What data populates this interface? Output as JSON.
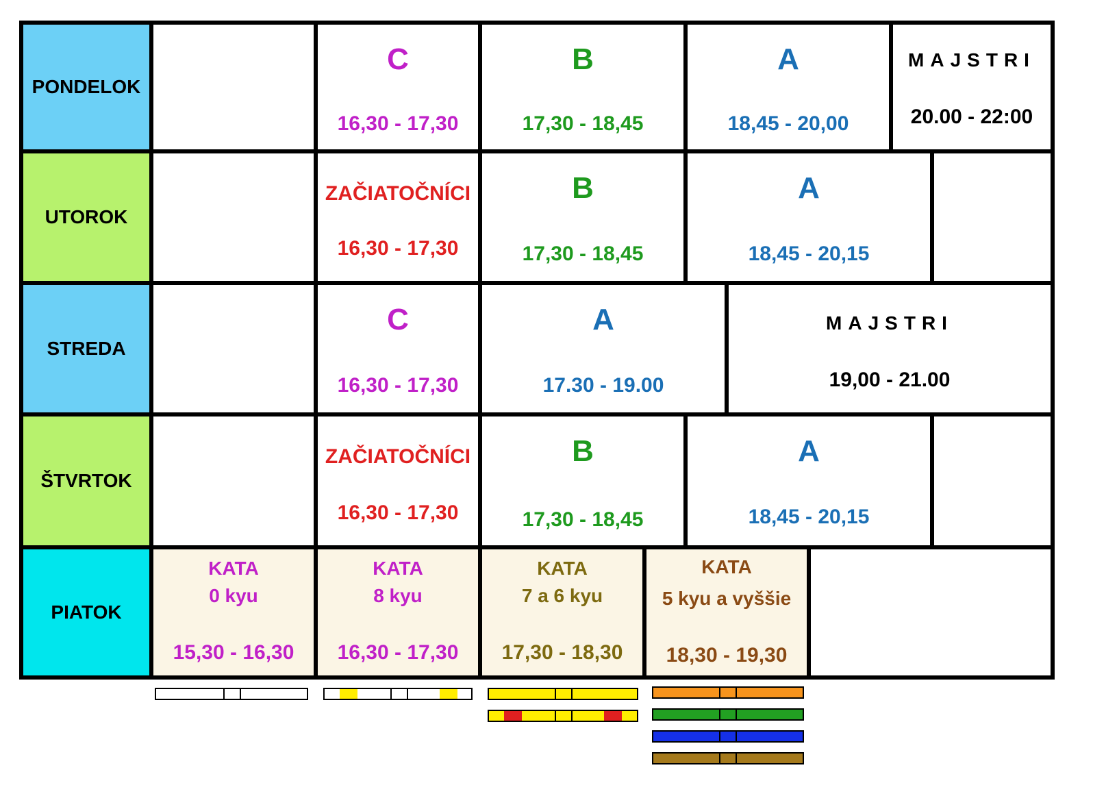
{
  "colors": {
    "purple": "#c020c8",
    "green": "#1e9a1e",
    "blue": "#1a6fb5",
    "red": "#e02020",
    "black": "#000000",
    "olive": "#7d6a10",
    "brown": "#8a4a14",
    "day_blue": "#6cd0f6",
    "day_green": "#b7f26d",
    "day_cyan": "#00e6ed",
    "kata_bg": "#fbf5e5"
  },
  "days": {
    "mon": "PONDELOK",
    "tue": "UTOROK",
    "wed": "STREDA",
    "thu": "ŠTVRTOK",
    "fri": "PIATOK"
  },
  "monday": [
    {
      "group": "C",
      "time": "16,30  - 17,30"
    },
    {
      "group": "B",
      "time": "17,30  - 18,45"
    },
    {
      "group": "A",
      "time": "18,45 - 20,00"
    },
    {
      "group": "MAJSTRI",
      "time": "20.00 - 22:00"
    }
  ],
  "tuesday": [
    {
      "group": "ZAČIATOČNÍCI",
      "time": "16,30 - 17,30"
    },
    {
      "group": "B",
      "time": "17,30  - 18,45"
    },
    {
      "group": "A",
      "time": "18,45 - 20,15"
    }
  ],
  "wednesday": [
    {
      "group": "C",
      "time": "16,30  - 17,30"
    },
    {
      "group": "A",
      "time": "17.30 - 19.00"
    },
    {
      "group": "MAJSTRI",
      "time": "19,00 - 21.00"
    }
  ],
  "thursday": [
    {
      "group": "ZAČIATOČNÍCI",
      "time": "16,30 - 17,30"
    },
    {
      "group": "B",
      "time": "17,30  - 18,45"
    },
    {
      "group": "A",
      "time": "18,45 - 20,15"
    }
  ],
  "friday": [
    {
      "title": "KATA",
      "level": "0 kyu",
      "time": "15,30 - 16,30"
    },
    {
      "title": "KATA",
      "level": "8 kyu",
      "time": "16,30 - 17,30"
    },
    {
      "title": "KATA",
      "level": "7 a 6 kyu",
      "time": "17,30 - 18,30"
    },
    {
      "title": "KATA",
      "level": "5 kyu a vyššie",
      "time": "18,30 - 19,30"
    }
  ],
  "belts": [
    {
      "name": "white-belt",
      "color": "#ffffff",
      "stripe": null
    },
    {
      "name": "white-belt-yellow-stripes",
      "color": "#ffffff",
      "stripe": "#ffee00"
    },
    {
      "name": "yellow-belt",
      "color": "#ffee00",
      "stripe": null
    },
    {
      "name": "yellow-belt-red-stripes",
      "color": "#ffee00",
      "stripe": "#e02020"
    },
    {
      "name": "orange-belt",
      "color": "#f7941d",
      "stripe": null
    },
    {
      "name": "green-belt",
      "color": "#22a022",
      "stripe": null
    },
    {
      "name": "blue-belt",
      "color": "#1530e8",
      "stripe": null
    },
    {
      "name": "brown-belt",
      "color": "#a57a1c",
      "stripe": null
    }
  ]
}
